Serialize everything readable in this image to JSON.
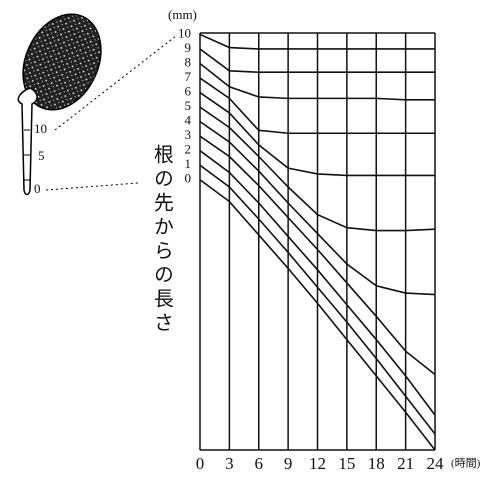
{
  "chart_data": {
    "type": "line",
    "y_unit_label": "(mm)",
    "x_unit_label": "(時間)",
    "ylabel": "根の先からの長さ",
    "seed_scale_labels": [
      "10",
      "5",
      "0"
    ],
    "x": [
      0,
      3,
      6,
      9,
      12,
      15,
      18,
      21,
      24
    ],
    "xlim": [
      0,
      24
    ],
    "xticks": [
      0,
      3,
      6,
      9,
      12,
      15,
      18,
      21,
      24
    ],
    "ylim": [
      -18.6,
      10.1
    ],
    "yticks": [
      0,
      1,
      2,
      3,
      4,
      5,
      6,
      7,
      8,
      9,
      10
    ],
    "grid": true,
    "series": [
      {
        "color": "#111111",
        "values": [
          10,
          9.1,
          9.0,
          9.0,
          9.0,
          9.0,
          9.0,
          9.0,
          9.0
        ]
      },
      {
        "color": "#111111",
        "values": [
          9,
          7.5,
          7.4,
          7.4,
          7.4,
          7.4,
          7.4,
          7.4,
          7.4
        ]
      },
      {
        "color": "#111111",
        "values": [
          8,
          6.4,
          5.7,
          5.6,
          5.6,
          5.6,
          5.6,
          5.5,
          5.5
        ]
      },
      {
        "color": "#111111",
        "values": [
          7,
          5.6,
          3.4,
          3.2,
          3.2,
          3.2,
          3.2,
          3.2,
          3.2
        ]
      },
      {
        "color": "#111111",
        "values": [
          6,
          4.6,
          2.4,
          0.8,
          0.4,
          0.3,
          0.3,
          0.3,
          0.3
        ]
      },
      {
        "color": "#111111",
        "values": [
          5,
          3.6,
          1.6,
          -0.5,
          -2.4,
          -3.3,
          -3.5,
          -3.5,
          -3.4
        ]
      },
      {
        "color": "#111111",
        "values": [
          4,
          2.6,
          0.6,
          -1.6,
          -3.7,
          -5.8,
          -7.3,
          -7.8,
          -7.9
        ]
      },
      {
        "color": "#111111",
        "values": [
          3,
          1.6,
          -0.4,
          -2.6,
          -4.8,
          -7.1,
          -9.4,
          -11.8,
          -13.4
        ]
      },
      {
        "color": "#111111",
        "values": [
          2,
          0.5,
          -1.6,
          -3.9,
          -6.2,
          -8.6,
          -11,
          -13.5,
          -16.2
        ]
      },
      {
        "color": "#111111",
        "values": [
          1,
          -0.5,
          -2.7,
          -5,
          -7.4,
          -9.8,
          -12.3,
          -14.9,
          -17.5
        ]
      },
      {
        "color": "#111111",
        "values": [
          0,
          -1.5,
          -3.8,
          -6.1,
          -8.5,
          -11,
          -13.5,
          -16,
          -18.6
        ]
      }
    ]
  }
}
